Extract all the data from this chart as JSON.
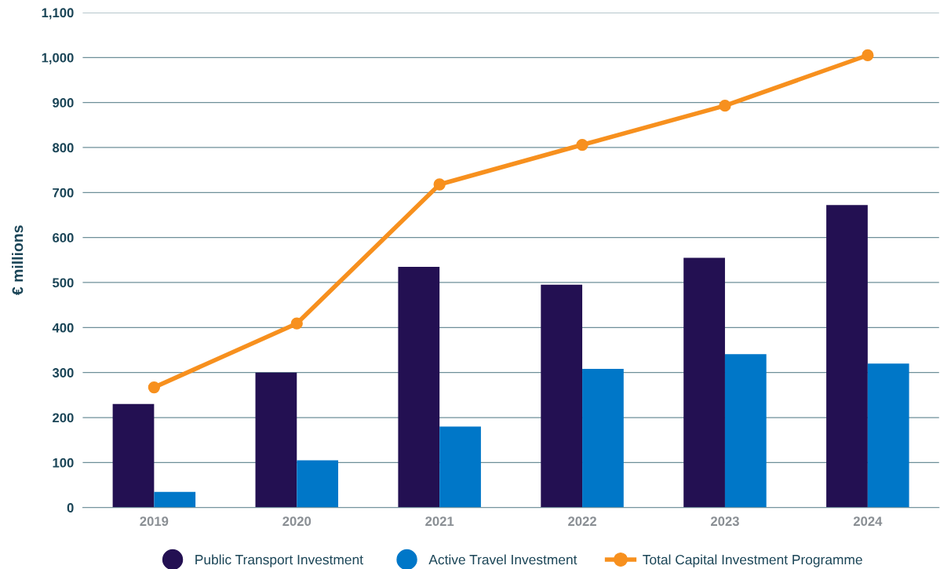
{
  "chart_data": {
    "type": "bar",
    "ylabel": "€ millions",
    "categories": [
      "2019",
      "2020",
      "2021",
      "2022",
      "2023",
      "2024"
    ],
    "series": [
      {
        "name": "Public Transport Investment",
        "color": "#231052",
        "values": [
          230,
          300,
          535,
          495,
          555,
          672
        ]
      },
      {
        "name": "Active Travel Investment",
        "color": "#0077c8",
        "values": [
          35,
          105,
          180,
          308,
          341,
          320
        ]
      },
      {
        "name": "Total Capital Investment Programme",
        "type": "line",
        "color": "#f7901e",
        "marker": "circle",
        "values": [
          267,
          409,
          718,
          806,
          893,
          1005
        ]
      }
    ],
    "ylim": [
      0,
      1100
    ],
    "yticks": [
      0,
      {
        "value": 100,
        "label": "100"
      },
      200,
      300,
      400,
      500,
      600,
      700,
      800,
      900,
      {
        "value": 1000,
        "label": "1,000"
      },
      {
        "value": 1100,
        "label": "1,100"
      }
    ],
    "grid": "y",
    "legend": "bottom"
  }
}
